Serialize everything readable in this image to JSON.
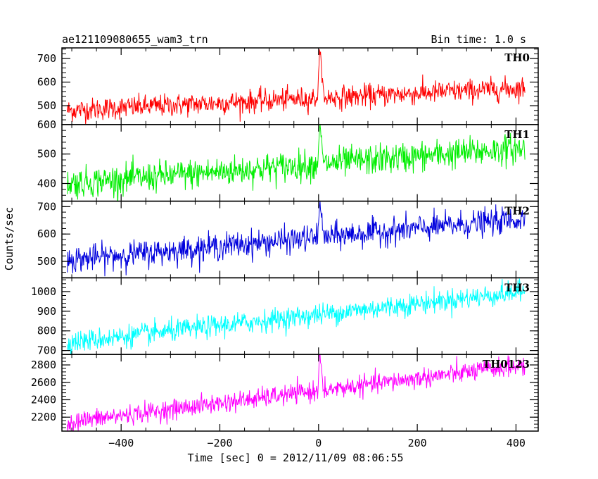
{
  "header": {
    "title": "ae121109080655_wam3_trn",
    "bin_time": "Bin time: 1.0 s"
  },
  "chart_data": {
    "type": "line",
    "xlabel": "Time [sec] 0 = 2012/11/09 08:06:55",
    "ylabel": "Counts/sec",
    "xlim": [
      -520,
      445
    ],
    "x_ticks": [
      -400,
      -200,
      0,
      200,
      400
    ],
    "x_tick_labels": [
      "−400",
      "−200",
      "0",
      "200",
      "400"
    ],
    "x_range": [
      -509,
      418
    ],
    "panels": [
      {
        "name": "TH0",
        "color": "#ff0000",
        "ylim": [
          420,
          745
        ],
        "y_ticks": [
          500,
          600,
          700
        ],
        "y_tick_labels": [
          "500",
          "600",
          "700"
        ],
        "trend": {
          "start": 480,
          "end": 575
        },
        "noise": 30,
        "burst": {
          "peak": 745,
          "baseline": 530
        }
      },
      {
        "name": "TH1",
        "color": "#00ee00",
        "ylim": [
          340,
          600
        ],
        "y_ticks": [
          400,
          500,
          600
        ],
        "y_tick_labels": [
          "400",
          "500",
          "600"
        ],
        "trend": {
          "start": 400,
          "end": 520
        },
        "noise": 32,
        "burst": {
          "peak": 595,
          "baseline": 465
        }
      },
      {
        "name": "TH2",
        "color": "#0000dd",
        "ylim": [
          440,
          720
        ],
        "y_ticks": [
          500,
          600,
          700
        ],
        "y_tick_labels": [
          "500",
          "600",
          "700"
        ],
        "trend": {
          "start": 505,
          "end": 655
        },
        "noise": 30,
        "burst": {
          "peak": 715,
          "baseline": 580
        }
      },
      {
        "name": "TH3",
        "color": "#00ffff",
        "ylim": [
          680,
          1070
        ],
        "y_ticks": [
          700,
          800,
          900,
          1000
        ],
        "y_tick_labels": [
          "700",
          "800",
          "900",
          "1000"
        ],
        "trend": {
          "start": 740,
          "end": 1000
        },
        "noise": 35,
        "burst": null
      },
      {
        "name": "TH0123",
        "color": "#ff00ff",
        "ylim": [
          2040,
          2920
        ],
        "y_ticks": [
          2200,
          2400,
          2600,
          2800
        ],
        "y_tick_labels": [
          "2200",
          "2400",
          "2600",
          "2800"
        ],
        "trend": {
          "start": 2140,
          "end": 2800
        },
        "noise": 70,
        "burst": {
          "peak": 2920,
          "baseline": 2430
        }
      }
    ]
  }
}
